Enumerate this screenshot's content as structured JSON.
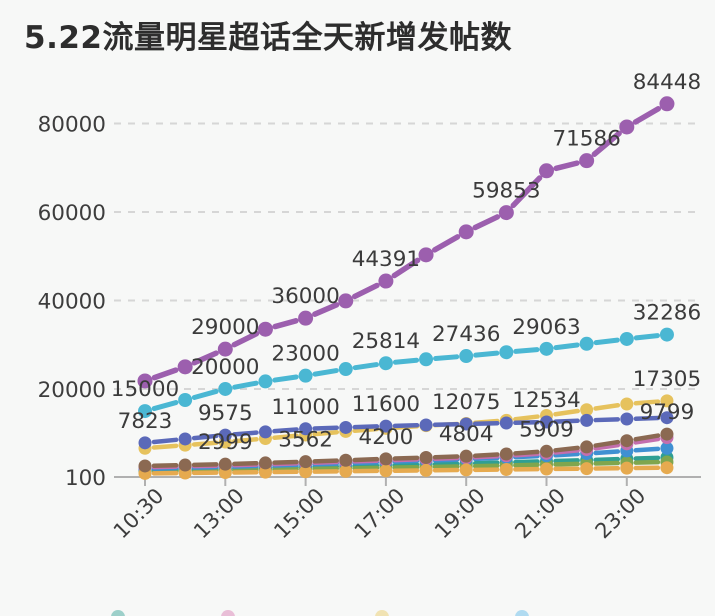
{
  "title": "5.22流量明星超话全天新增发帖数",
  "chart_data": {
    "type": "line",
    "title": "5.22流量明星超话全天新增发帖数",
    "grid": "horizontal dashed gridlines",
    "marker": "large round dots on every point, dashed-segment lines",
    "x_axis": {
      "tick_labels": [
        "10:30",
        "13:00",
        "15:00",
        "17:00",
        "19:00",
        "21:00",
        "23:00"
      ],
      "tick_point_indices": [
        0,
        2,
        4,
        6,
        8,
        10,
        12
      ],
      "label_rotation_deg": -45,
      "points_per_series": 14
    },
    "y_axis": {
      "ticks": [
        100,
        20000,
        40000,
        60000,
        80000
      ],
      "tick_labels": [
        "100",
        "20000",
        "40000",
        "60000",
        "80000"
      ],
      "ylim": [
        100,
        88000
      ]
    },
    "series": [
      {
        "name": "purple",
        "color": "#9c5fae",
        "values": [
          21800,
          25000,
          29000,
          33500,
          36000,
          39900,
          44391,
          50300,
          55500,
          59853,
          69300,
          71586,
          79200,
          84448
        ],
        "point_labels": {
          "2": "29000",
          "4": "36000",
          "6": "44391",
          "9": "59853",
          "11": "71586",
          "13": "84448"
        }
      },
      {
        "name": "cyan",
        "color": "#4ab7d3",
        "values": [
          15000,
          17500,
          20000,
          21700,
          23000,
          24500,
          25814,
          26700,
          27436,
          28300,
          29063,
          30200,
          31300,
          32286
        ],
        "point_labels": {
          "0": "15000",
          "2": "20000",
          "4": "23000",
          "6": "25814",
          "8": "27436",
          "10": "29063",
          "13": "32286"
        }
      },
      {
        "name": "gold",
        "color": "#e6c25d",
        "values": [
          6600,
          7300,
          8000,
          8800,
          9600,
          10400,
          11100,
          11700,
          12200,
          12900,
          14000,
          15300,
          16600,
          17305
        ],
        "point_labels": {
          "13": "17305"
        }
      },
      {
        "name": "indigo",
        "color": "#5b69b9",
        "values": [
          7823,
          8700,
          9575,
          10300,
          11000,
          11300,
          11600,
          11850,
          12075,
          12300,
          12534,
          12900,
          13200,
          13500
        ],
        "point_labels": {
          "0": "7823",
          "2": "9575",
          "4": "11000",
          "6": "11600",
          "8": "12075",
          "10": "12534"
        }
      },
      {
        "name": "brown",
        "color": "#8b6952",
        "values": [
          2600,
          2800,
          2999,
          3280,
          3562,
          3880,
          4200,
          4500,
          4804,
          5300,
          5909,
          6900,
          8300,
          9799
        ],
        "point_labels": {
          "2": "2999",
          "4": "3562",
          "6": "4200",
          "8": "4804",
          "10": "5909",
          "13": "9799"
        }
      },
      {
        "name": "pink",
        "color": "#c36fae",
        "values": [
          2300,
          2500,
          2700,
          2950,
          3250,
          3550,
          3850,
          4150,
          4450,
          4900,
          5450,
          6300,
          7600,
          9000
        ],
        "point_labels": {}
      },
      {
        "name": "lightblue",
        "color": "#3f90d2",
        "values": [
          1900,
          2150,
          2400,
          2650,
          2900,
          3200,
          3500,
          3800,
          4100,
          4500,
          4900,
          5400,
          6000,
          6600
        ],
        "point_labels": {}
      },
      {
        "name": "teal",
        "color": "#2f9f93",
        "values": [
          1600,
          1750,
          1950,
          2150,
          2350,
          2550,
          2750,
          2950,
          3150,
          3400,
          3650,
          3900,
          4200,
          4500
        ],
        "point_labels": {}
      },
      {
        "name": "olive",
        "color": "#7fa64e",
        "values": [
          1300,
          1450,
          1600,
          1750,
          1900,
          2050,
          2200,
          2350,
          2500,
          2700,
          2900,
          3100,
          3300,
          3500
        ],
        "point_labels": {}
      },
      {
        "name": "amber",
        "color": "#e6aa4f",
        "values": [
          900,
          1000,
          1100,
          1200,
          1300,
          1400,
          1500,
          1600,
          1700,
          1800,
          1900,
          2000,
          2100,
          2200
        ],
        "point_labels": {}
      }
    ],
    "legend": {
      "note": "legend row cut off at bottom edge of screenshot, only dot tops visible",
      "dots": [
        {
          "color": "#2f9f93",
          "x": 118
        },
        {
          "color": "#d878b0",
          "x": 228
        },
        {
          "color": "#e8c95f",
          "x": 382
        },
        {
          "color": "#59b9e8",
          "x": 522
        }
      ]
    }
  }
}
